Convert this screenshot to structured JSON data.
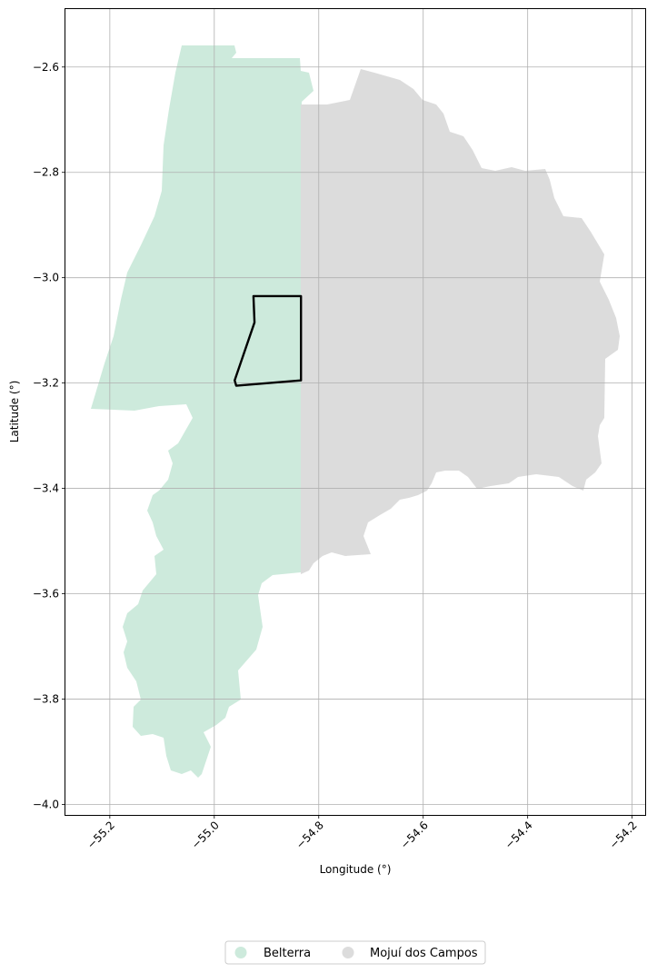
{
  "chart_data": {
    "type": "map",
    "xlabel": "Longitude (°)",
    "ylabel": "Latitude (°)",
    "xticks": [
      "−55.2",
      "−55.0",
      "−54.8",
      "−54.6",
      "−54.4",
      "−54.2"
    ],
    "yticks": [
      "−2.6",
      "−2.8",
      "−3.0",
      "−3.2",
      "−3.4",
      "−3.6",
      "−3.8",
      "−4.0"
    ],
    "xtick_values": [
      -55.2,
      -55.0,
      -54.8,
      -54.6,
      -54.4,
      -54.2
    ],
    "ytick_values": [
      -2.6,
      -2.8,
      -3.0,
      -3.2,
      -3.4,
      -3.6,
      -3.8,
      -4.0
    ],
    "xlim": [
      -55.285,
      -54.175
    ],
    "ylim": [
      -4.02,
      -2.49
    ],
    "grid": true,
    "legend_placement": "bottom-center",
    "regions": [
      {
        "name": "Belterra",
        "color": "#cdeadc"
      },
      {
        "name": "Mojuí dos Campos",
        "color": "#dcdcdc"
      }
    ],
    "highlight_polygon": {
      "color": "#000000",
      "points": [
        [
          -54.925,
          -3.035
        ],
        [
          -54.834,
          -3.035
        ],
        [
          -54.834,
          -3.195
        ],
        [
          -54.958,
          -3.205
        ],
        [
          -54.961,
          -3.195
        ],
        [
          -54.923,
          -3.085
        ]
      ]
    }
  }
}
